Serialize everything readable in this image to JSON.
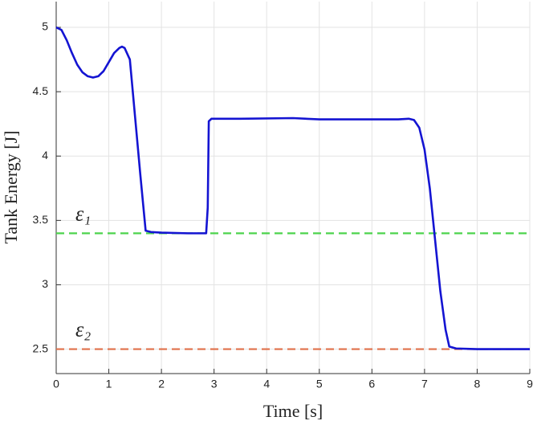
{
  "chart_data": {
    "type": "line",
    "xlabel": "Time [s]",
    "ylabel": "Tank Energy [J]",
    "xlim": [
      0,
      9
    ],
    "ylim": [
      2.31,
      5.2
    ],
    "xticks": [
      0,
      1,
      2,
      3,
      4,
      5,
      6,
      7,
      8,
      9
    ],
    "yticks": [
      2.5,
      3,
      3.5,
      4,
      4.5,
      5
    ],
    "grid": true,
    "series": [
      {
        "color": "#1414d2",
        "x": [
          0,
          0.1,
          0.2,
          0.3,
          0.4,
          0.5,
          0.6,
          0.7,
          0.8,
          0.9,
          1.0,
          1.1,
          1.2,
          1.25,
          1.3,
          1.4,
          1.5,
          1.6,
          1.7,
          1.8,
          2.0,
          2.5,
          2.85,
          2.88,
          2.9,
          2.95,
          3.5,
          4.5,
          5,
          6,
          6.5,
          6.7,
          6.8,
          6.9,
          7.0,
          7.1,
          7.2,
          7.3,
          7.4,
          7.47,
          7.6,
          8,
          9
        ],
        "values": [
          5.0,
          4.98,
          4.9,
          4.8,
          4.71,
          4.65,
          4.62,
          4.61,
          4.62,
          4.66,
          4.73,
          4.8,
          4.84,
          4.85,
          4.84,
          4.75,
          4.3,
          3.85,
          3.42,
          3.41,
          3.405,
          3.4,
          3.4,
          3.6,
          4.27,
          4.29,
          4.29,
          4.295,
          4.285,
          4.285,
          4.285,
          4.29,
          4.28,
          4.22,
          4.05,
          3.75,
          3.35,
          2.95,
          2.65,
          2.52,
          2.505,
          2.5,
          2.5
        ]
      }
    ],
    "reference_lines": [
      {
        "label": "ε₁",
        "value": 3.4,
        "color": "#4cd34c"
      },
      {
        "label": "ε₂",
        "value": 2.5,
        "color": "#e0704a"
      }
    ]
  }
}
